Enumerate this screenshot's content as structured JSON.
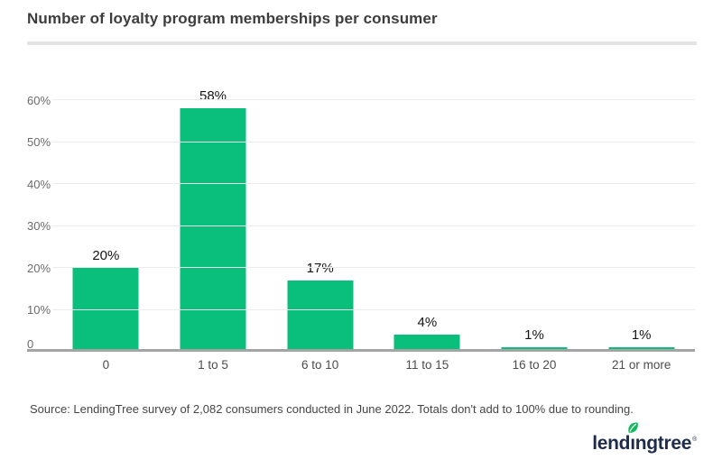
{
  "header": {
    "title": "Number of loyalty program memberships per consumer"
  },
  "chart_data": {
    "type": "bar",
    "title": "Number of loyalty program memberships per consumer",
    "categories": [
      "0",
      "1 to 5",
      "6 to 10",
      "11 to 15",
      "16 to 20",
      "21 or more"
    ],
    "values": [
      20,
      58,
      17,
      4,
      1,
      1
    ],
    "data_labels": [
      "20%",
      "58%",
      "17%",
      "4%",
      "1%",
      "1%"
    ],
    "xlabel": "",
    "ylabel": "",
    "ylim": [
      0,
      60
    ],
    "y_ticks": [
      {
        "label": "0",
        "value": 0
      },
      {
        "label": "10%",
        "value": 10
      },
      {
        "label": "20%",
        "value": 20
      },
      {
        "label": "30%",
        "value": 30
      },
      {
        "label": "40%",
        "value": 40
      },
      {
        "label": "50%",
        "value": 50
      },
      {
        "label": "60%",
        "value": 60
      }
    ],
    "grid": true,
    "legend_position": "none",
    "bar_color": "#0abf7b"
  },
  "footer": {
    "source": "Source: LendingTree survey of 2,082 consumers conducted in June 2022. Totals don't add to 100% due to rounding.",
    "logo": {
      "full_name": "lendingtree",
      "before_i": "lend",
      "i_char": "ı",
      "after_i": "ngtree",
      "registered": "®",
      "wordmark_color": "#1e2b49",
      "leaf_color": "#16b95f"
    }
  }
}
